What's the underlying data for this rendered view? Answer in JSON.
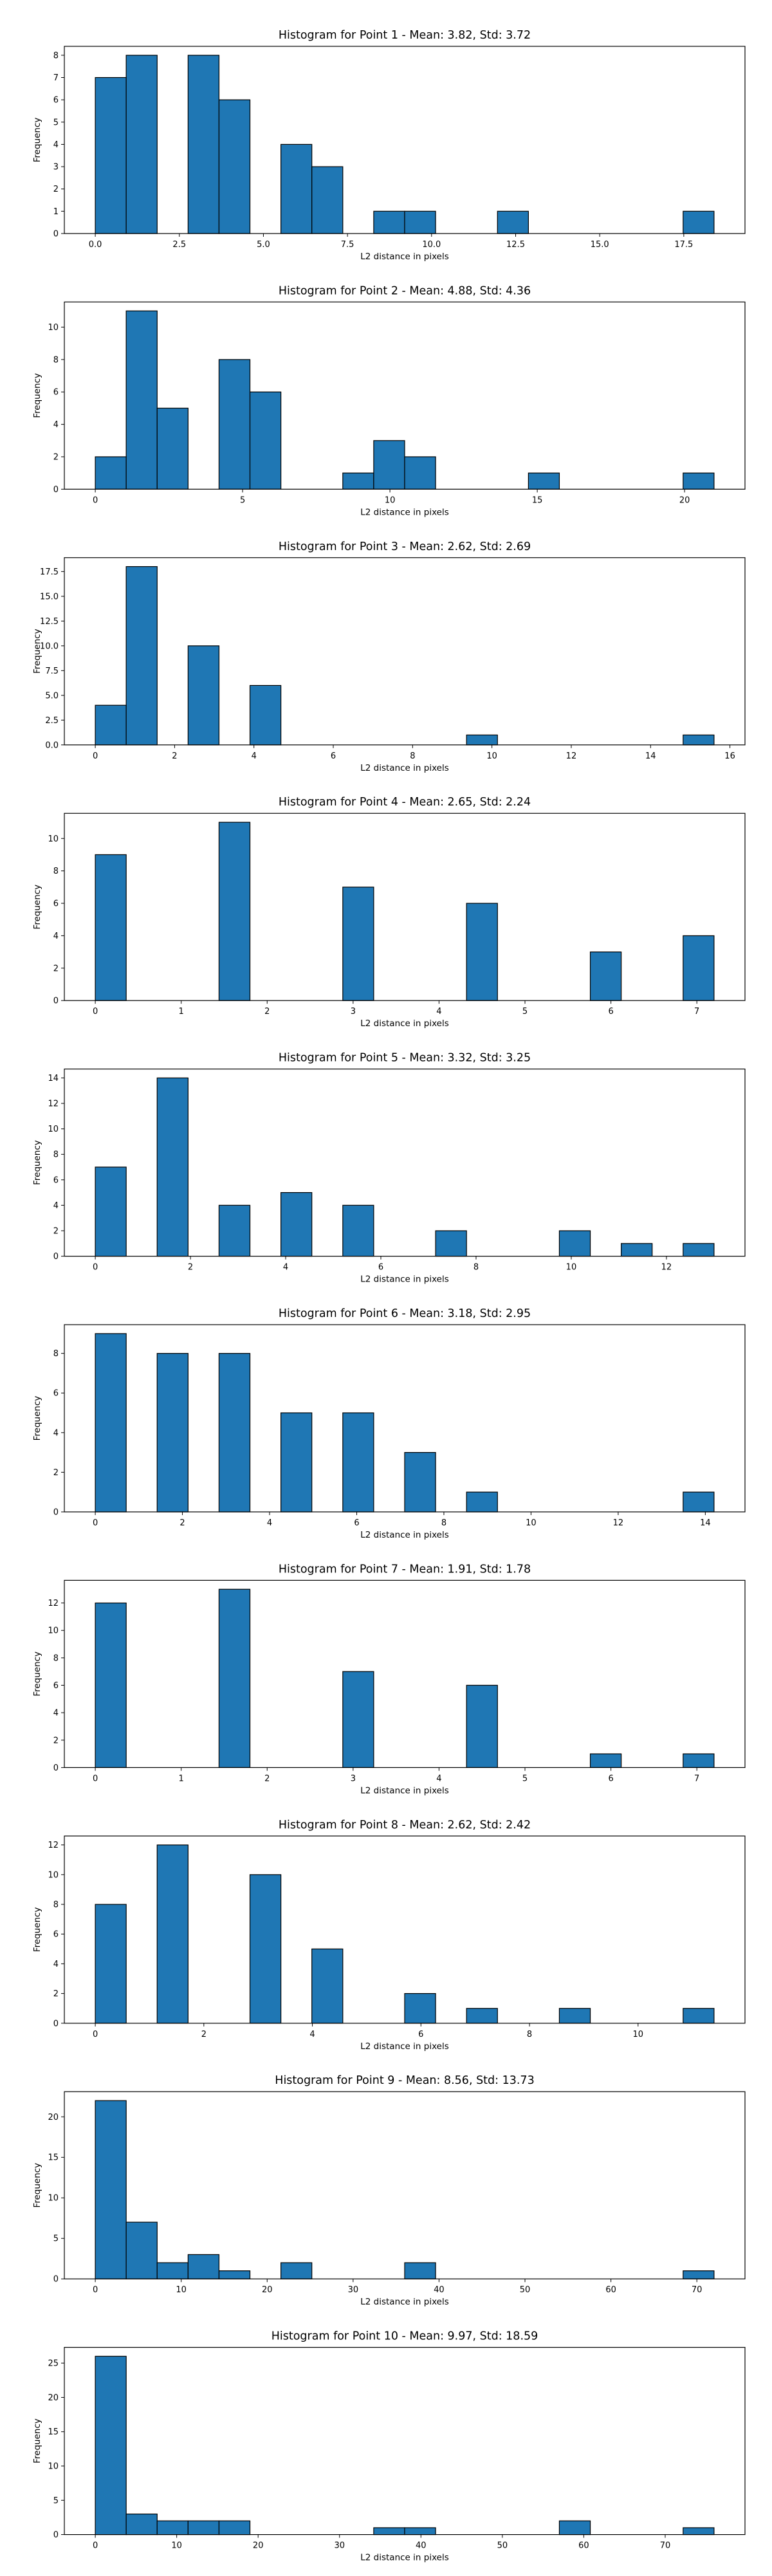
{
  "chart_data": [
    {
      "type": "bar",
      "title": "Histogram for Point 1 - Mean: 3.82, Std: 3.72",
      "xlabel": "L2 distance in pixels",
      "ylabel": "Frequency",
      "xlim": [
        -0.92,
        19.32
      ],
      "ylim": [
        0,
        8.4
      ],
      "xticks": [
        0,
        2.5,
        5,
        7.5,
        10,
        12.5,
        15,
        17.5
      ],
      "xtick_labels": [
        "0.0",
        "2.5",
        "5.0",
        "7.5",
        "10.0",
        "12.5",
        "15.0",
        "17.5"
      ],
      "yticks": [
        0,
        1,
        2,
        3,
        4,
        5,
        6,
        7,
        8
      ],
      "ytick_labels": [
        "0",
        "1",
        "2",
        "3",
        "4",
        "5",
        "6",
        "7",
        "8"
      ],
      "bars": [
        {
          "x0": 0.0,
          "x1": 0.92,
          "value": 7
        },
        {
          "x0": 0.92,
          "x1": 1.84,
          "value": 8
        },
        {
          "x0": 2.76,
          "x1": 3.68,
          "value": 8
        },
        {
          "x0": 3.68,
          "x1": 4.6,
          "value": 6
        },
        {
          "x0": 5.52,
          "x1": 6.44,
          "value": 4
        },
        {
          "x0": 6.44,
          "x1": 7.36,
          "value": 3
        },
        {
          "x0": 8.28,
          "x1": 9.2,
          "value": 1
        },
        {
          "x0": 9.2,
          "x1": 10.12,
          "value": 1
        },
        {
          "x0": 11.96,
          "x1": 12.88,
          "value": 1
        },
        {
          "x0": 17.48,
          "x1": 18.4,
          "value": 1
        }
      ]
    },
    {
      "type": "bar",
      "title": "Histogram for Point 2 - Mean: 4.88, Std: 4.36",
      "xlabel": "L2 distance in pixels",
      "ylabel": "Frequency",
      "xlim": [
        -1.05,
        22.05
      ],
      "ylim": [
        0,
        11.55
      ],
      "xticks": [
        0,
        5,
        10,
        15,
        20
      ],
      "xtick_labels": [
        "0",
        "5",
        "10",
        "15",
        "20"
      ],
      "yticks": [
        0,
        2,
        4,
        6,
        8,
        10
      ],
      "ytick_labels": [
        "0",
        "2",
        "4",
        "6",
        "8",
        "10"
      ],
      "bars": [
        {
          "x0": 0.0,
          "x1": 1.05,
          "value": 2
        },
        {
          "x0": 1.05,
          "x1": 2.1,
          "value": 11
        },
        {
          "x0": 2.1,
          "x1": 3.15,
          "value": 5
        },
        {
          "x0": 4.2,
          "x1": 5.25,
          "value": 8
        },
        {
          "x0": 5.25,
          "x1": 6.3,
          "value": 6
        },
        {
          "x0": 8.4,
          "x1": 9.45,
          "value": 1
        },
        {
          "x0": 9.45,
          "x1": 10.5,
          "value": 3
        },
        {
          "x0": 10.5,
          "x1": 11.55,
          "value": 2
        },
        {
          "x0": 14.7,
          "x1": 15.75,
          "value": 1
        },
        {
          "x0": 19.95,
          "x1": 21.0,
          "value": 1
        }
      ]
    },
    {
      "type": "bar",
      "title": "Histogram for Point 3 - Mean: 2.62, Std: 2.69",
      "xlabel": "L2 distance in pixels",
      "ylabel": "Frequency",
      "xlim": [
        -0.78,
        16.38
      ],
      "ylim": [
        0,
        18.9
      ],
      "xticks": [
        0,
        2,
        4,
        6,
        8,
        10,
        12,
        14,
        16
      ],
      "xtick_labels": [
        "0",
        "2",
        "4",
        "6",
        "8",
        "10",
        "12",
        "14",
        "16"
      ],
      "yticks": [
        0,
        2.5,
        5,
        7.5,
        10,
        12.5,
        15,
        17.5
      ],
      "ytick_labels": [
        "0.0",
        "2.5",
        "5.0",
        "7.5",
        "10.0",
        "12.5",
        "15.0",
        "17.5"
      ],
      "bars": [
        {
          "x0": 0.0,
          "x1": 0.78,
          "value": 4
        },
        {
          "x0": 0.78,
          "x1": 1.56,
          "value": 18
        },
        {
          "x0": 2.34,
          "x1": 3.12,
          "value": 10
        },
        {
          "x0": 3.9,
          "x1": 4.68,
          "value": 6
        },
        {
          "x0": 9.36,
          "x1": 10.14,
          "value": 1
        },
        {
          "x0": 14.82,
          "x1": 15.6,
          "value": 1
        }
      ]
    },
    {
      "type": "bar",
      "title": "Histogram for Point 4 - Mean: 2.65, Std: 2.24",
      "xlabel": "L2 distance in pixels",
      "ylabel": "Frequency",
      "xlim": [
        -0.36,
        7.56
      ],
      "ylim": [
        0,
        11.55
      ],
      "xticks": [
        0,
        1,
        2,
        3,
        4,
        5,
        6,
        7
      ],
      "xtick_labels": [
        "0",
        "1",
        "2",
        "3",
        "4",
        "5",
        "6",
        "7"
      ],
      "yticks": [
        0,
        2,
        4,
        6,
        8,
        10
      ],
      "ytick_labels": [
        "0",
        "2",
        "4",
        "6",
        "8",
        "10"
      ],
      "bars": [
        {
          "x0": 0.0,
          "x1": 0.36,
          "value": 9
        },
        {
          "x0": 1.44,
          "x1": 1.8,
          "value": 11
        },
        {
          "x0": 2.88,
          "x1": 3.24,
          "value": 7
        },
        {
          "x0": 4.32,
          "x1": 4.68,
          "value": 6
        },
        {
          "x0": 5.76,
          "x1": 6.12,
          "value": 3
        },
        {
          "x0": 6.84,
          "x1": 7.2,
          "value": 4
        }
      ]
    },
    {
      "type": "bar",
      "title": "Histogram for Point 5 - Mean: 3.32, Std: 3.25",
      "xlabel": "L2 distance in pixels",
      "ylabel": "Frequency",
      "xlim": [
        -0.65,
        13.65
      ],
      "ylim": [
        0,
        14.7
      ],
      "xticks": [
        0,
        2,
        4,
        6,
        8,
        10,
        12
      ],
      "xtick_labels": [
        "0",
        "2",
        "4",
        "6",
        "8",
        "10",
        "12"
      ],
      "yticks": [
        0,
        2,
        4,
        6,
        8,
        10,
        12,
        14
      ],
      "ytick_labels": [
        "0",
        "2",
        "4",
        "6",
        "8",
        "10",
        "12",
        "14"
      ],
      "bars": [
        {
          "x0": 0.0,
          "x1": 0.65,
          "value": 7
        },
        {
          "x0": 1.3,
          "x1": 1.95,
          "value": 14
        },
        {
          "x0": 2.6,
          "x1": 3.25,
          "value": 4
        },
        {
          "x0": 3.9,
          "x1": 4.55,
          "value": 5
        },
        {
          "x0": 5.2,
          "x1": 5.85,
          "value": 4
        },
        {
          "x0": 7.15,
          "x1": 7.8,
          "value": 2
        },
        {
          "x0": 9.75,
          "x1": 10.4,
          "value": 2
        },
        {
          "x0": 11.05,
          "x1": 11.7,
          "value": 1
        },
        {
          "x0": 12.35,
          "x1": 13.0,
          "value": 1
        }
      ]
    },
    {
      "type": "bar",
      "title": "Histogram for Point 6 - Mean: 3.18, Std: 2.95",
      "xlabel": "L2 distance in pixels",
      "ylabel": "Frequency",
      "xlim": [
        -0.71,
        14.91
      ],
      "ylim": [
        0,
        9.45
      ],
      "xticks": [
        0,
        2,
        4,
        6,
        8,
        10,
        12,
        14
      ],
      "xtick_labels": [
        "0",
        "2",
        "4",
        "6",
        "8",
        "10",
        "12",
        "14"
      ],
      "yticks": [
        0,
        2,
        4,
        6,
        8
      ],
      "ytick_labels": [
        "0",
        "2",
        "4",
        "6",
        "8"
      ],
      "bars": [
        {
          "x0": 0.0,
          "x1": 0.71,
          "value": 9
        },
        {
          "x0": 1.42,
          "x1": 2.13,
          "value": 8
        },
        {
          "x0": 2.84,
          "x1": 3.55,
          "value": 8
        },
        {
          "x0": 4.26,
          "x1": 4.97,
          "value": 5
        },
        {
          "x0": 5.68,
          "x1": 6.39,
          "value": 5
        },
        {
          "x0": 7.1,
          "x1": 7.81,
          "value": 3
        },
        {
          "x0": 8.52,
          "x1": 9.23,
          "value": 1
        },
        {
          "x0": 13.49,
          "x1": 14.2,
          "value": 1
        }
      ]
    },
    {
      "type": "bar",
      "title": "Histogram for Point 7 - Mean: 1.91, Std: 1.78",
      "xlabel": "L2 distance in pixels",
      "ylabel": "Frequency",
      "xlim": [
        -0.36,
        7.56
      ],
      "ylim": [
        0,
        13.65
      ],
      "xticks": [
        0,
        1,
        2,
        3,
        4,
        5,
        6,
        7
      ],
      "xtick_labels": [
        "0",
        "1",
        "2",
        "3",
        "4",
        "5",
        "6",
        "7"
      ],
      "yticks": [
        0,
        2,
        4,
        6,
        8,
        10,
        12
      ],
      "ytick_labels": [
        "0",
        "2",
        "4",
        "6",
        "8",
        "10",
        "12"
      ],
      "bars": [
        {
          "x0": 0.0,
          "x1": 0.36,
          "value": 12
        },
        {
          "x0": 1.44,
          "x1": 1.8,
          "value": 13
        },
        {
          "x0": 2.88,
          "x1": 3.24,
          "value": 7
        },
        {
          "x0": 4.32,
          "x1": 4.68,
          "value": 6
        },
        {
          "x0": 5.76,
          "x1": 6.12,
          "value": 1
        },
        {
          "x0": 6.84,
          "x1": 7.2,
          "value": 1
        }
      ]
    },
    {
      "type": "bar",
      "title": "Histogram for Point 8 - Mean: 2.62, Std: 2.42",
      "xlabel": "L2 distance in pixels",
      "ylabel": "Frequency",
      "xlim": [
        -0.57,
        11.97
      ],
      "ylim": [
        0,
        12.6
      ],
      "xticks": [
        0,
        2,
        4,
        6,
        8,
        10
      ],
      "xtick_labels": [
        "0",
        "2",
        "4",
        "6",
        "8",
        "10"
      ],
      "yticks": [
        0,
        2,
        4,
        6,
        8,
        10,
        12
      ],
      "ytick_labels": [
        "0",
        "2",
        "4",
        "6",
        "8",
        "10",
        "12"
      ],
      "bars": [
        {
          "x0": 0.0,
          "x1": 0.57,
          "value": 8
        },
        {
          "x0": 1.14,
          "x1": 1.71,
          "value": 12
        },
        {
          "x0": 2.85,
          "x1": 3.42,
          "value": 10
        },
        {
          "x0": 3.99,
          "x1": 4.56,
          "value": 5
        },
        {
          "x0": 5.7,
          "x1": 6.27,
          "value": 2
        },
        {
          "x0": 6.84,
          "x1": 7.41,
          "value": 1
        },
        {
          "x0": 8.55,
          "x1": 9.12,
          "value": 1
        },
        {
          "x0": 10.83,
          "x1": 11.4,
          "value": 1
        }
      ]
    },
    {
      "type": "bar",
      "title": "Histogram for Point 9 - Mean: 8.56, Std: 13.73",
      "xlabel": "L2 distance in pixels",
      "ylabel": "Frequency",
      "xlim": [
        -3.6,
        75.6
      ],
      "ylim": [
        0,
        23.1
      ],
      "xticks": [
        0,
        10,
        20,
        30,
        40,
        50,
        60,
        70
      ],
      "xtick_labels": [
        "0",
        "10",
        "20",
        "30",
        "40",
        "50",
        "60",
        "70"
      ],
      "yticks": [
        0,
        5,
        10,
        15,
        20
      ],
      "ytick_labels": [
        "0",
        "5",
        "10",
        "15",
        "20"
      ],
      "bars": [
        {
          "x0": 0.0,
          "x1": 3.6,
          "value": 22
        },
        {
          "x0": 3.6,
          "x1": 7.2,
          "value": 7
        },
        {
          "x0": 7.2,
          "x1": 10.8,
          "value": 2
        },
        {
          "x0": 10.8,
          "x1": 14.4,
          "value": 3
        },
        {
          "x0": 14.4,
          "x1": 18.0,
          "value": 1
        },
        {
          "x0": 21.6,
          "x1": 25.2,
          "value": 2
        },
        {
          "x0": 36.0,
          "x1": 39.6,
          "value": 2
        },
        {
          "x0": 68.4,
          "x1": 72.0,
          "value": 1
        }
      ]
    },
    {
      "type": "bar",
      "title": "Histogram for Point 10 - Mean: 9.97, Std: 18.59",
      "xlabel": "L2 distance in pixels",
      "ylabel": "Frequency",
      "xlim": [
        -3.8,
        79.8
      ],
      "ylim": [
        0,
        27.3
      ],
      "xticks": [
        0,
        10,
        20,
        30,
        40,
        50,
        60,
        70
      ],
      "xtick_labels": [
        "0",
        "10",
        "20",
        "30",
        "40",
        "50",
        "60",
        "70"
      ],
      "yticks": [
        0,
        5,
        10,
        15,
        20,
        25
      ],
      "ytick_labels": [
        "0",
        "5",
        "10",
        "15",
        "20",
        "25"
      ],
      "bars": [
        {
          "x0": 0.0,
          "x1": 3.8,
          "value": 26
        },
        {
          "x0": 3.8,
          "x1": 7.6,
          "value": 3
        },
        {
          "x0": 7.6,
          "x1": 11.4,
          "value": 2
        },
        {
          "x0": 11.4,
          "x1": 15.2,
          "value": 2
        },
        {
          "x0": 15.2,
          "x1": 19.0,
          "value": 2
        },
        {
          "x0": 34.2,
          "x1": 38.0,
          "value": 1
        },
        {
          "x0": 38.0,
          "x1": 41.8,
          "value": 1
        },
        {
          "x0": 57.0,
          "x1": 60.8,
          "value": 2
        },
        {
          "x0": 72.2,
          "x1": 76.0,
          "value": 1
        }
      ]
    }
  ],
  "colors": {
    "bar_fill": "#1f77b4",
    "bar_edge": "#000000",
    "axes": "#000000",
    "background": "#ffffff"
  }
}
